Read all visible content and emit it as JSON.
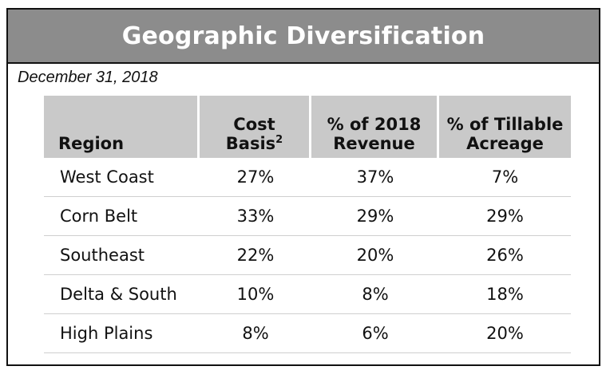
{
  "title": "Geographic Diversification",
  "date": "December 31, 2018",
  "headers": {
    "region": "Region",
    "cost_basis": "Cost Basis",
    "cost_basis_note": "2",
    "revenue_line1": "% of 2018",
    "revenue_line2": "Revenue",
    "acreage_line1": "% of Tillable",
    "acreage_line2": "Acreage"
  },
  "rows": [
    {
      "region": "West Coast",
      "cost_basis": "27%",
      "revenue": "37%",
      "acreage": "7%"
    },
    {
      "region": "Corn Belt",
      "cost_basis": "33%",
      "revenue": "29%",
      "acreage": "29%"
    },
    {
      "region": "Southeast",
      "cost_basis": "22%",
      "revenue": "20%",
      "acreage": "26%"
    },
    {
      "region": "Delta & South",
      "cost_basis": "10%",
      "revenue": "8%",
      "acreage": "18%"
    },
    {
      "region": "High Plains",
      "cost_basis": "8%",
      "revenue": "6%",
      "acreage": "20%"
    }
  ],
  "colors": {
    "title_bar": "#8c8c8c",
    "header_fill": "#c9c9c9",
    "row_divider": "#cfcfcf"
  }
}
